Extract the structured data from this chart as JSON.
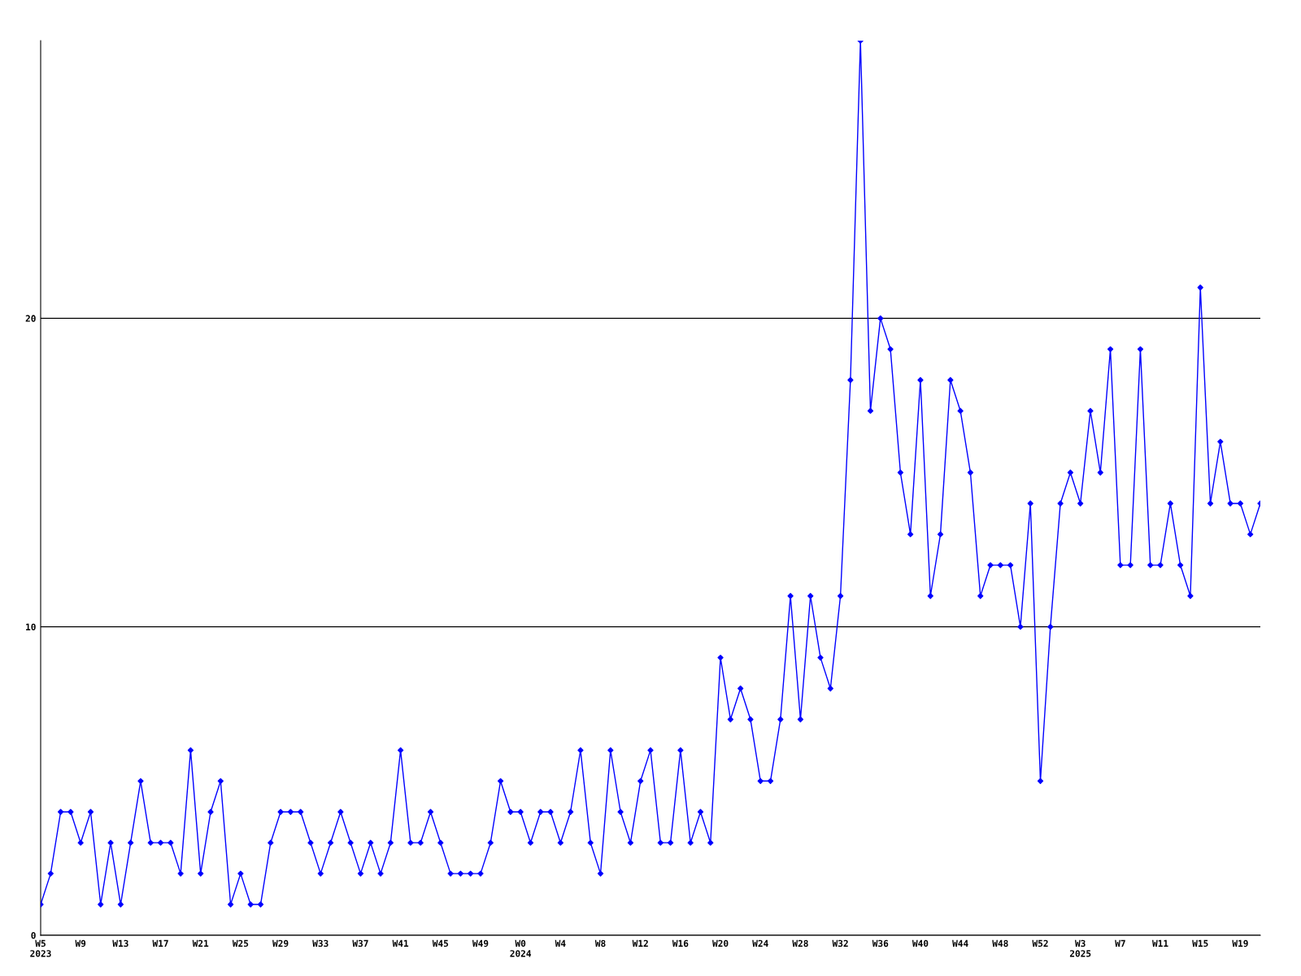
{
  "chart_data": {
    "type": "line",
    "categories": [
      "W5\n2023",
      null,
      null,
      null,
      "W9",
      null,
      null,
      null,
      "W13",
      null,
      null,
      null,
      "W17",
      null,
      null,
      null,
      "W21",
      null,
      null,
      null,
      "W25",
      null,
      null,
      null,
      "W29",
      null,
      null,
      null,
      "W33",
      null,
      null,
      null,
      "W37",
      null,
      null,
      null,
      "W41",
      null,
      null,
      null,
      "W45",
      null,
      null,
      null,
      "W49",
      null,
      null,
      null,
      "W0\n2024",
      null,
      null,
      null,
      "W4",
      null,
      null,
      null,
      "W8",
      null,
      null,
      null,
      "W12",
      null,
      null,
      null,
      "W16",
      null,
      null,
      null,
      "W20",
      null,
      null,
      null,
      "W24",
      null,
      null,
      null,
      "W28",
      null,
      null,
      null,
      "W32",
      null,
      null,
      null,
      "W36",
      null,
      null,
      null,
      "W40",
      null,
      null,
      null,
      "W44",
      null,
      null,
      null,
      "W48",
      null,
      null,
      null,
      "W52",
      null,
      null,
      null,
      "W3\n2025",
      null,
      null,
      null,
      "W7",
      null,
      null,
      null,
      "W11",
      null,
      null,
      null,
      "W15",
      null,
      null,
      null,
      "W19",
      null,
      null
    ],
    "series": [
      {
        "color": "#0000ff",
        "values": [
          1,
          2,
          4,
          4,
          3,
          4,
          1,
          3,
          1,
          3,
          5,
          3,
          3,
          3,
          2,
          6,
          2,
          4,
          5,
          1,
          2,
          1,
          1,
          3,
          4,
          4,
          4,
          3,
          2,
          3,
          4,
          3,
          2,
          3,
          2,
          3,
          6,
          3,
          3,
          4,
          3,
          2,
          2,
          2,
          2,
          3,
          5,
          4,
          4,
          3,
          4,
          4,
          3,
          4,
          6,
          3,
          2,
          6,
          4,
          3,
          5,
          6,
          3,
          3,
          6,
          3,
          4,
          3,
          9,
          7,
          8,
          7,
          5,
          5,
          7,
          11,
          7,
          11,
          9,
          8,
          11,
          18,
          29,
          17,
          20,
          19,
          15,
          13,
          18,
          11,
          13,
          18,
          17,
          15,
          11,
          12,
          12,
          12,
          10,
          14,
          5,
          10,
          14,
          15,
          14,
          17,
          15,
          19,
          12,
          12,
          19,
          12,
          12,
          14,
          12,
          11,
          21,
          14,
          16,
          14,
          14,
          13,
          14
        ]
      }
    ],
    "ylim": [
      0,
      29
    ],
    "yticks": [
      0,
      10,
      20
    ],
    "grid": "y",
    "marker": "diamond",
    "line_style": "solid"
  }
}
